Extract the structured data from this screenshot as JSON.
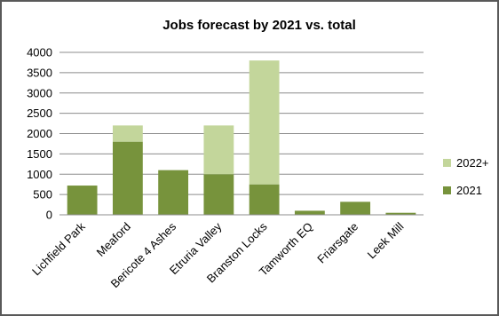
{
  "chart_data": {
    "type": "bar",
    "stacked": true,
    "title": "Jobs forecast by 2021 vs. total",
    "xlabel": "",
    "ylabel": "",
    "ylim": [
      0,
      4000
    ],
    "yticks": [
      0,
      500,
      1000,
      1500,
      2000,
      2500,
      3000,
      3500,
      4000
    ],
    "grid": true,
    "legend_position": "right",
    "categories": [
      "Lichfield Park",
      "Meaford",
      "Bericote 4 Ashes",
      "Etruria Valley",
      "Branston Locks",
      "Tamworth EQ",
      "Friarsgate",
      "Leek Mill"
    ],
    "series": [
      {
        "name": "2021",
        "color": "#77933c",
        "values": [
          720,
          1800,
          1100,
          1000,
          750,
          100,
          320,
          50
        ]
      },
      {
        "name": "2022+",
        "color": "#c3d69b",
        "values": [
          0,
          400,
          0,
          1200,
          3050,
          0,
          0,
          0
        ]
      }
    ]
  }
}
